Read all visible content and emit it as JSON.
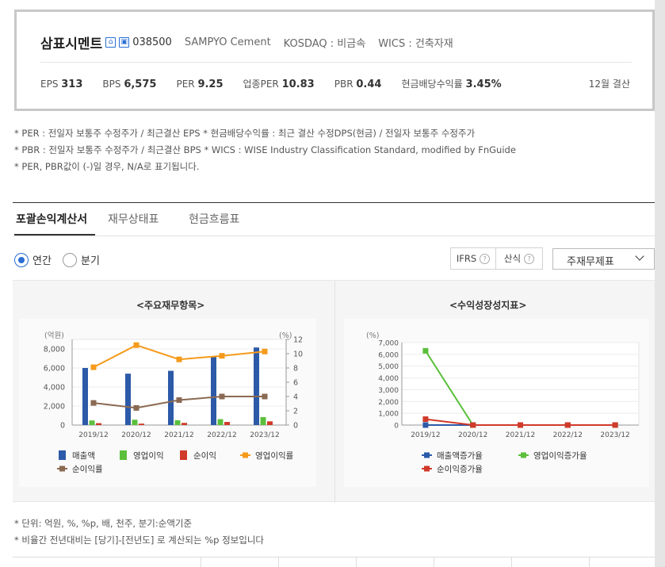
{
  "header": {
    "company_name": "삼표시멘트",
    "icon_1": "home-icon",
    "icon_2": "info-icon",
    "stock_code": "038500",
    "english_name": "SAMPYO Cement",
    "market": "KOSDAQ : 비금속",
    "wics": "WICS : 건축자재",
    "metrics": [
      {
        "label": "EPS",
        "value": "313"
      },
      {
        "label": "BPS",
        "value": "6,575"
      },
      {
        "label": "PER",
        "value": "9.25"
      },
      {
        "label": "업종PER",
        "value": "10.83"
      },
      {
        "label": "PBR",
        "value": "0.44"
      },
      {
        "label": "현금배당수익률",
        "value": "3.45%"
      }
    ],
    "settlement": "12월 결산"
  },
  "notes": [
    "* PER : 전일자 보통주 수정주가 / 최근결산 EPS * 현금배당수익률 : 최근 결산 수정DPS(현금) / 전일자 보통주 수정주가",
    "* PBR : 전일자 보통주 수정주가 / 최근결산 BPS * WICS : WISE Industry Classification Standard, modified by FnGuide",
    "* PER, PBR값이 (-)일 경우, N/A로 표기됩니다."
  ],
  "tabs": [
    {
      "label": "포괄손익계산서",
      "active": true
    },
    {
      "label": "재무상태표",
      "active": false
    },
    {
      "label": "현금흐름표",
      "active": false
    }
  ],
  "controls": {
    "radio_annual": "연간",
    "radio_quarter": "분기",
    "ifrs_label": "IFRS",
    "calc_label": "산식",
    "help_glyph": "?",
    "select_value": "주재무제표"
  },
  "chart_data": [
    {
      "type": "bar",
      "title": "<주요재무항목>",
      "y_left_unit": "(억원)",
      "y_right_unit": "(%)",
      "categories": [
        "2019/12",
        "2020/12",
        "2021/12",
        "2022/12",
        "2023/12"
      ],
      "ylim_left": [
        0,
        9000
      ],
      "ylim_right": [
        0,
        12
      ],
      "yticks_left": [
        "0",
        "2,000",
        "4,000",
        "6,000",
        "8,000"
      ],
      "yticks_right": [
        "0",
        "2",
        "4",
        "6",
        "8",
        "10",
        "12"
      ],
      "series": [
        {
          "name": "매출액",
          "kind": "bar",
          "axis": "left",
          "color": "#2c5aa8",
          "values": [
            6000,
            5400,
            5700,
            7200,
            8150
          ]
        },
        {
          "name": "영업이익",
          "kind": "bar",
          "axis": "left",
          "color": "#5bbf3c",
          "values": [
            480,
            560,
            500,
            620,
            840
          ]
        },
        {
          "name": "순이익",
          "kind": "bar",
          "axis": "left",
          "color": "#d03a2a",
          "values": [
            200,
            150,
            230,
            330,
            390
          ]
        },
        {
          "name": "영업이익률",
          "kind": "line",
          "axis": "right",
          "color": "#f59a1b",
          "values": [
            8.1,
            11.2,
            9.2,
            9.7,
            10.3
          ]
        },
        {
          "name": "순이익률",
          "kind": "line",
          "axis": "right",
          "color": "#8a6a52",
          "values": [
            3.1,
            2.4,
            3.5,
            4.0,
            4.0
          ]
        }
      ]
    },
    {
      "type": "line",
      "title": "<수익성장성지표>",
      "y_unit": "(%)",
      "categories": [
        "2019/12",
        "2020/12",
        "2021/12",
        "2022/12",
        "2023/12"
      ],
      "ylim": [
        0,
        7000
      ],
      "yticks": [
        "0",
        "1,000",
        "2,000",
        "3,000",
        "4,000",
        "5,000",
        "6,000",
        "7,000"
      ],
      "series": [
        {
          "name": "매출액증가율",
          "color": "#2c5aa8",
          "values": [
            0,
            0,
            0,
            0,
            0
          ]
        },
        {
          "name": "영업이익증가율",
          "color": "#5bbf3c",
          "values": [
            6300,
            0,
            0,
            0,
            0
          ]
        },
        {
          "name": "순이익증가율",
          "color": "#d03a2a",
          "values": [
            500,
            0,
            0,
            0,
            0
          ]
        }
      ]
    }
  ],
  "footer_notes": [
    "* 단위: 억원, %, %p, 배, 천주, 분기:순액기준",
    "* 비율간 전년대비는 [당기]-[전년도] 로 계산되는 %p 정보입니다"
  ]
}
